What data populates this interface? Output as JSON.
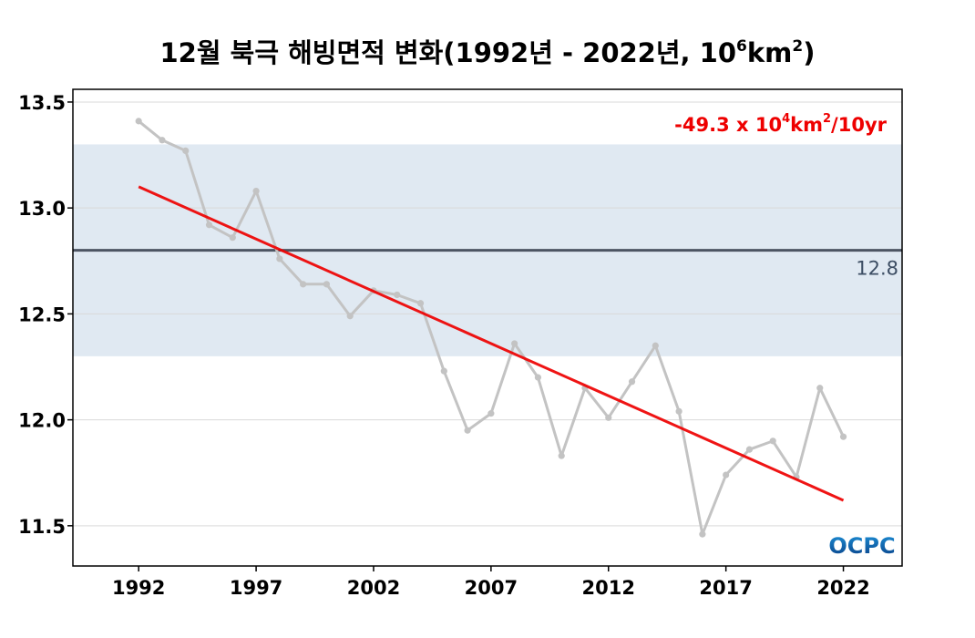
{
  "chart_data": {
    "type": "line",
    "title": {
      "main": "12월 북극 해빙면적 변화(1992년 - 2022년, 10",
      "sup1": "6",
      "mid": "km",
      "sup2": "2",
      "end": ")"
    },
    "x": [
      1992,
      1993,
      1994,
      1995,
      1996,
      1997,
      1998,
      1999,
      2000,
      2001,
      2002,
      2003,
      2004,
      2005,
      2006,
      2007,
      2008,
      2009,
      2010,
      2011,
      2012,
      2013,
      2014,
      2015,
      2016,
      2017,
      2018,
      2019,
      2020,
      2021,
      2022
    ],
    "values": [
      13.41,
      13.32,
      13.27,
      12.92,
      12.86,
      13.08,
      12.76,
      12.64,
      12.64,
      12.49,
      12.61,
      12.59,
      12.55,
      12.23,
      11.95,
      12.03,
      12.36,
      12.2,
      11.83,
      12.15,
      12.01,
      12.18,
      12.35,
      12.04,
      11.46,
      11.74,
      11.86,
      11.9,
      11.73,
      12.15,
      11.92
    ],
    "xlim": [
      1989.2,
      2024.5
    ],
    "ylim": [
      11.31,
      13.56
    ],
    "x_ticks": [
      1992,
      1997,
      2002,
      2007,
      2012,
      2017,
      2022
    ],
    "x_tick_labels": [
      "1992",
      "1997",
      "2002",
      "2007",
      "2012",
      "2017",
      "2022"
    ],
    "y_ticks": [
      11.5,
      12.0,
      12.5,
      13.0,
      13.5
    ],
    "y_tick_labels": [
      "11.5",
      "12.0",
      "12.5",
      "13.0",
      "13.5"
    ],
    "grid": true,
    "mean": 12.8,
    "mean_label": "12.8",
    "band": [
      12.3,
      13.3
    ],
    "trend": {
      "start": [
        1992,
        13.1
      ],
      "end": [
        2022,
        11.62
      ],
      "label_main": "-49.3 x 10",
      "label_sup1": "4",
      "label_mid": "km",
      "label_sup2": "2",
      "label_end": "/10yr"
    },
    "logo": "OCPC",
    "colors": {
      "series": "#c3c3c3",
      "trend": "#ee0000",
      "band": "#e0e9f2",
      "mean": "#4d5563",
      "grid": "#d9d9d9",
      "logo_top": "#1c8fd6",
      "logo_bottom": "#0a3f86"
    }
  }
}
